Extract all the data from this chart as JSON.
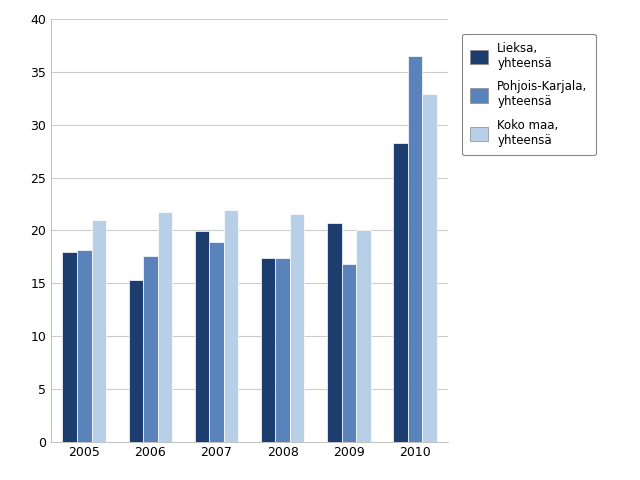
{
  "years": [
    "2005",
    "2006",
    "2007",
    "2008",
    "2009",
    "2010"
  ],
  "series": {
    "Lieksa,\nyhteensä": [
      18.0,
      15.3,
      19.9,
      17.4,
      20.7,
      28.3
    ],
    "Pohjois-Karjala,\nyhteensä": [
      18.1,
      17.6,
      18.9,
      17.4,
      16.8,
      36.5
    ],
    "Koko maa,\nyhteensä": [
      21.0,
      21.7,
      21.9,
      21.6,
      20.0,
      32.9
    ]
  },
  "colors": {
    "Lieksa,\nyhteensä": "#1c3d6e",
    "Pohjois-Karjala,\nyhteensä": "#5b83bb",
    "Koko maa,\nyhteensä": "#b8cfe8"
  },
  "ylim": [
    0,
    40
  ],
  "yticks": [
    0,
    5,
    10,
    15,
    20,
    25,
    30,
    35,
    40
  ],
  "background_color": "#ffffff",
  "grid_color": "#cccccc",
  "bar_width": 0.22,
  "legend_labels": [
    "Lieksa,\nyhteensä",
    "Pohjois-Karjala,\nyhteensä",
    "Koko maa,\nyhteensä"
  ]
}
